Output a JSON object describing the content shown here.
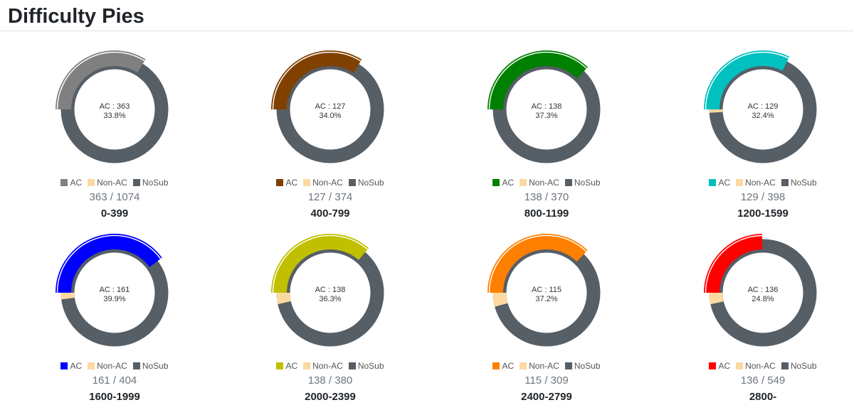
{
  "page_title": "Difficulty Pies",
  "colors": {
    "non_ac": "#fcd9a0",
    "nosub": "#565e66"
  },
  "legend_labels": {
    "ac": "AC",
    "non_ac": "Non-AC",
    "nosub": "NoSub"
  },
  "chart_data": [
    {
      "type": "pie",
      "range": "0-399",
      "ac": 363,
      "non_ac": 0,
      "total": 1074,
      "ac_color": "#808080",
      "center_label": "AC : 363",
      "center_percent": "33.8%",
      "counts_text": "363 / 1074",
      "legend": [
        "AC",
        "Non-AC",
        "NoSub"
      ]
    },
    {
      "type": "pie",
      "range": "400-799",
      "ac": 127,
      "non_ac": 0,
      "total": 374,
      "ac_color": "#804000",
      "center_label": "AC : 127",
      "center_percent": "34.0%",
      "counts_text": "127 / 374",
      "legend": [
        "AC",
        "Non-AC",
        "NoSub"
      ]
    },
    {
      "type": "pie",
      "range": "800-1199",
      "ac": 138,
      "non_ac": 0,
      "total": 370,
      "ac_color": "#008000",
      "center_label": "AC : 138",
      "center_percent": "37.3%",
      "counts_text": "138 / 370",
      "legend": [
        "AC",
        "Non-AC",
        "NoSub"
      ]
    },
    {
      "type": "pie",
      "range": "1200-1599",
      "ac": 129,
      "non_ac": 4,
      "total": 398,
      "ac_color": "#00c0c0",
      "center_label": "AC : 129",
      "center_percent": "32.4%",
      "counts_text": "129 / 398",
      "legend": [
        "AC",
        "Non-AC",
        "NoSub"
      ]
    },
    {
      "type": "pie",
      "range": "1600-1999",
      "ac": 161,
      "non_ac": 8,
      "total": 404,
      "ac_color": "#0000ff",
      "center_label": "AC : 161",
      "center_percent": "39.9%",
      "counts_text": "161 / 404",
      "legend": [
        "AC",
        "Non-AC",
        "NoSub"
      ]
    },
    {
      "type": "pie",
      "range": "2000-2399",
      "ac": 138,
      "non_ac": 13,
      "total": 380,
      "ac_color": "#c0c000",
      "center_label": "AC : 138",
      "center_percent": "36.3%",
      "counts_text": "138 / 380",
      "legend": [
        "AC",
        "Non-AC",
        "NoSub"
      ]
    },
    {
      "type": "pie",
      "range": "2400-2799",
      "ac": 115,
      "non_ac": 13,
      "total": 309,
      "ac_color": "#ff8000",
      "center_label": "AC : 115",
      "center_percent": "37.2%",
      "counts_text": "115 / 309",
      "legend": [
        "AC",
        "Non-AC",
        "NoSub"
      ]
    },
    {
      "type": "pie",
      "range": "2800-",
      "ac": 136,
      "non_ac": 19,
      "total": 549,
      "ac_color": "#ff0000",
      "center_label": "AC : 136",
      "center_percent": "24.8%",
      "counts_text": "136 / 549",
      "legend": [
        "AC",
        "Non-AC",
        "NoSub"
      ]
    }
  ]
}
